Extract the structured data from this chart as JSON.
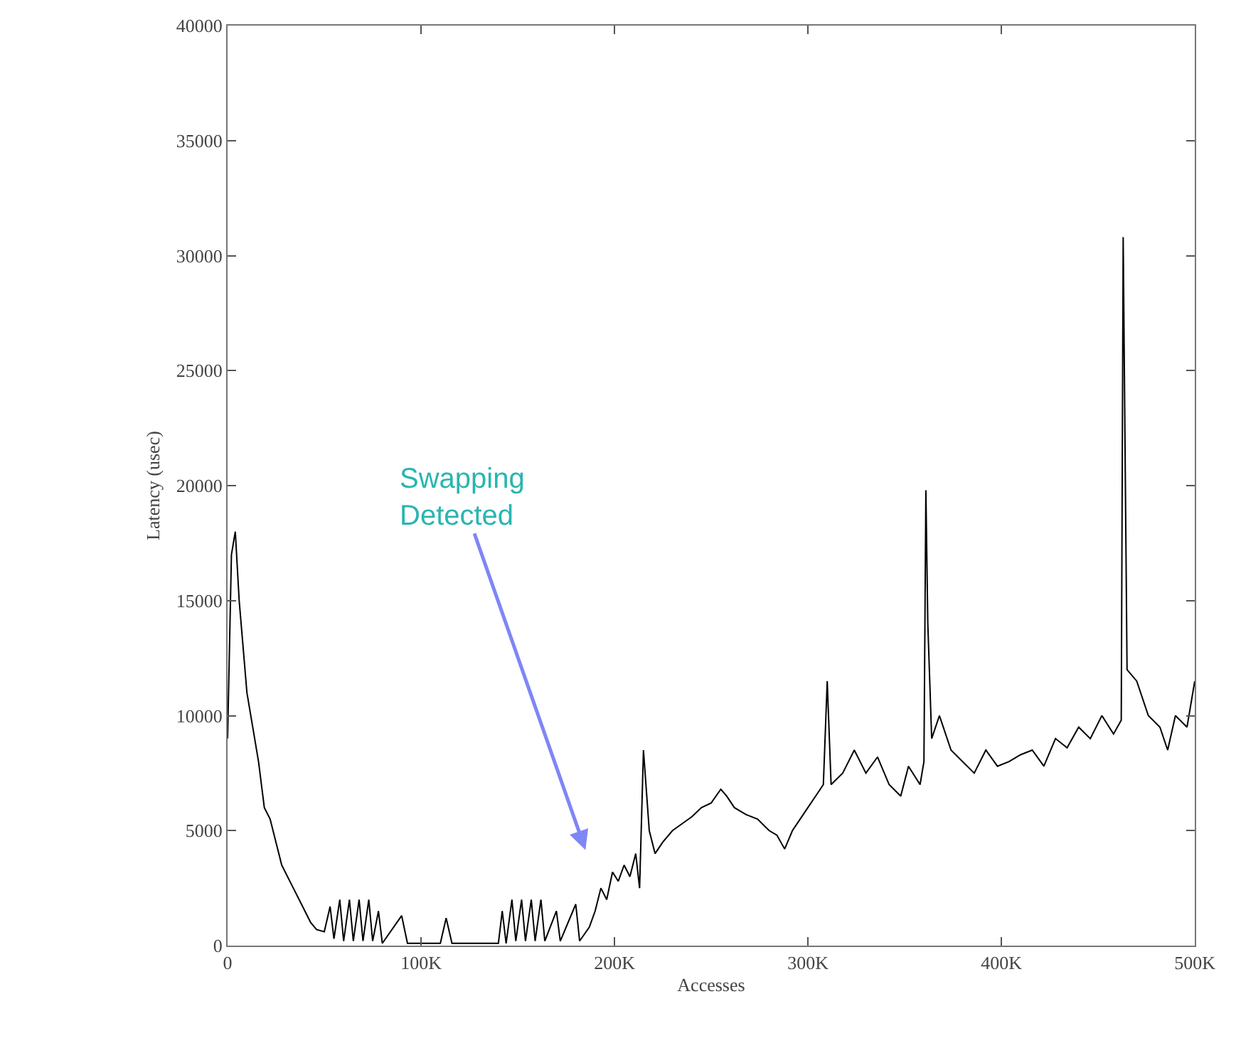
{
  "chart_data": {
    "type": "line",
    "xlabel": "Accesses",
    "ylabel": "Latency (usec)",
    "xlim": [
      0,
      500000
    ],
    "ylim": [
      0,
      40000
    ],
    "xticks": [
      0,
      {
        "value": 100000,
        "label": "100K"
      },
      {
        "value": 200000,
        "label": "200K"
      },
      {
        "value": 300000,
        "label": "300K"
      },
      {
        "value": 400000,
        "label": "400K"
      },
      {
        "value": 500000,
        "label": "500K"
      }
    ],
    "yticks": [
      0,
      5000,
      10000,
      15000,
      20000,
      25000,
      30000,
      35000,
      40000
    ],
    "marker": "none",
    "line_style": "solid",
    "annotations": [
      "Swapping Detected"
    ],
    "series": [
      {
        "color": "#000000",
        "x": [
          0,
          2000,
          4000,
          6000,
          8000,
          10000,
          13000,
          16000,
          19000,
          22000,
          25000,
          28000,
          31000,
          34000,
          37000,
          40000,
          43000,
          46000,
          50000,
          53000,
          55000,
          58000,
          60000,
          63000,
          65000,
          68000,
          70000,
          73000,
          75000,
          78000,
          80000,
          90000,
          93000,
          110000,
          113000,
          116000,
          140000,
          142000,
          144000,
          147000,
          149000,
          152000,
          154000,
          157000,
          159000,
          162000,
          164000,
          170000,
          172000,
          180000,
          182000,
          187000,
          190000,
          193000,
          196000,
          199000,
          202000,
          205000,
          208000,
          211000,
          213000,
          215000,
          218000,
          221000,
          225000,
          230000,
          235000,
          240000,
          245000,
          250000,
          255000,
          258000,
          262000,
          268000,
          274000,
          280000,
          284000,
          288000,
          292000,
          296000,
          300000,
          304000,
          308000,
          310000,
          312000,
          318000,
          324000,
          330000,
          336000,
          342000,
          348000,
          352000,
          358000,
          360000,
          361000,
          362000,
          364000,
          368000,
          374000,
          380000,
          386000,
          392000,
          398000,
          404000,
          410000,
          416000,
          422000,
          428000,
          434000,
          440000,
          446000,
          452000,
          458000,
          462000,
          463000,
          465000,
          470000,
          476000,
          482000,
          486000,
          490000,
          496000,
          500000
        ],
        "values": [
          9000,
          17000,
          18000,
          15000,
          13000,
          11000,
          9500,
          8000,
          6000,
          5500,
          4500,
          3500,
          3000,
          2500,
          2000,
          1500,
          1000,
          700,
          600,
          1700,
          300,
          2000,
          200,
          2000,
          200,
          2000,
          200,
          2000,
          200,
          1500,
          100,
          1300,
          100,
          100,
          1200,
          100,
          100,
          1500,
          100,
          2000,
          200,
          2000,
          200,
          2000,
          200,
          2000,
          200,
          1500,
          200,
          1800,
          200,
          800,
          1500,
          2500,
          2000,
          3200,
          2800,
          3500,
          3000,
          4000,
          2500,
          8500,
          5000,
          4000,
          4500,
          5000,
          5300,
          5600,
          6000,
          6200,
          6800,
          6500,
          6000,
          5700,
          5500,
          5000,
          4800,
          4200,
          5000,
          5500,
          6000,
          6500,
          7000,
          11500,
          7000,
          7500,
          8500,
          7500,
          8200,
          7000,
          6500,
          7800,
          7000,
          8000,
          19800,
          14000,
          9000,
          10000,
          8500,
          8000,
          7500,
          8500,
          7800,
          8000,
          8300,
          8500,
          7800,
          9000,
          8600,
          9500,
          9000,
          10000,
          9200,
          9800,
          30800,
          12000,
          11500,
          10000,
          9500,
          8500,
          10000,
          9500,
          11500
        ]
      }
    ]
  }
}
